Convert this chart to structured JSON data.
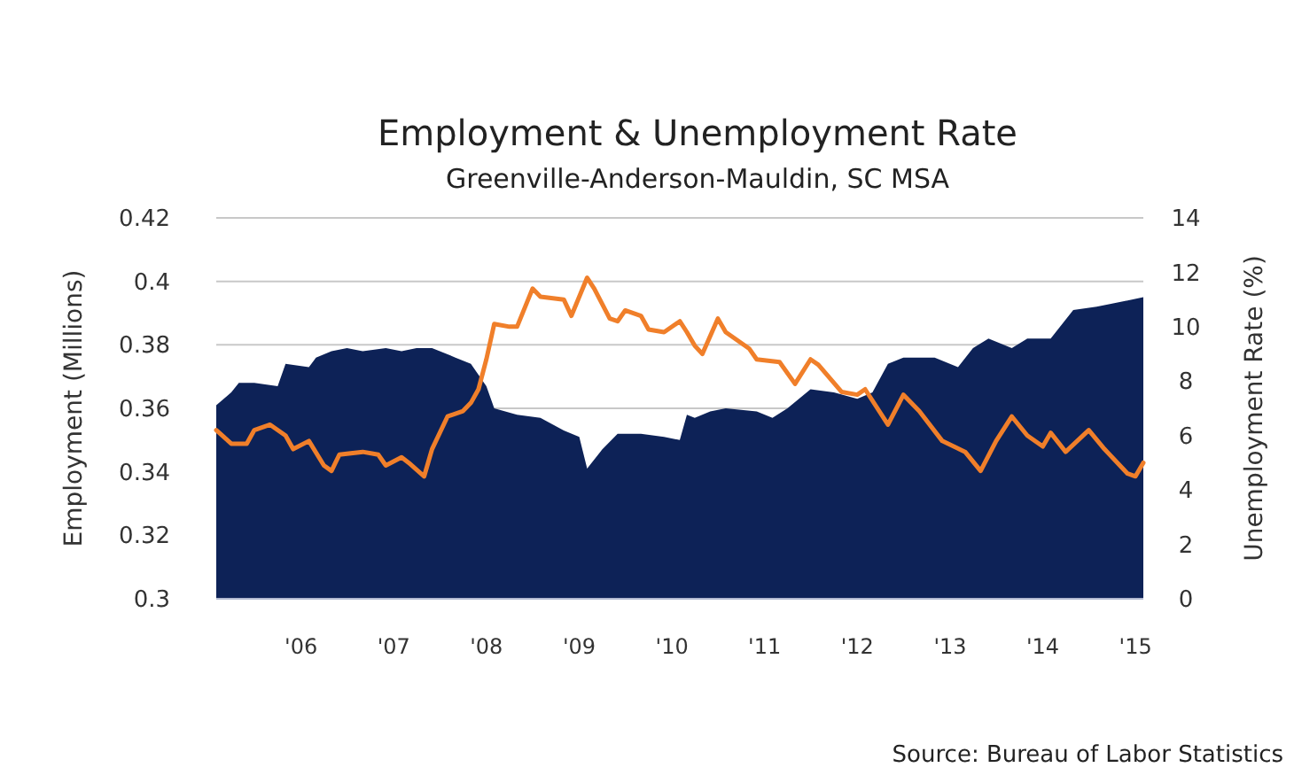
{
  "chart_data": {
    "type": "area",
    "title": "Employment & Unemployment Rate",
    "subtitle": "Greenville-Anderson-Mauldin, SC MSA",
    "ylabel": "Employment (Millions)",
    "y2label": "Unemployment Rate (%)",
    "xlim": [
      "2005-02",
      "2015-02"
    ],
    "xticks": [
      {
        "value": "2006-01",
        "label": "'06"
      },
      {
        "value": "2007-01",
        "label": "'07"
      },
      {
        "value": "2008-01",
        "label": "'08"
      },
      {
        "value": "2009-01",
        "label": "'09"
      },
      {
        "value": "2010-01",
        "label": "'10"
      },
      {
        "value": "2011-01",
        "label": "'11"
      },
      {
        "value": "2012-01",
        "label": "'12"
      },
      {
        "value": "2013-01",
        "label": "'13"
      },
      {
        "value": "2014-01",
        "label": "'14"
      },
      {
        "value": "2015-01",
        "label": "'15"
      }
    ],
    "ylim": [
      0.3,
      0.42
    ],
    "yticks": [
      0.3,
      0.32,
      0.34,
      0.36,
      0.38,
      0.4,
      0.42
    ],
    "y2lim": [
      0,
      14
    ],
    "y2ticks": [
      0,
      2,
      4,
      6,
      8,
      10,
      12,
      14
    ],
    "grid": "y",
    "annotations": [
      "Source: Bureau of Labor Statistics"
    ],
    "series": [
      {
        "color": "#0d2257",
        "x": [
          "2005-02",
          "2005-04",
          "2005-05",
          "2005-07",
          "2005-10",
          "2005-11",
          "2006-02",
          "2006-03",
          "2006-05",
          "2006-07",
          "2006-09",
          "2006-12",
          "2007-02",
          "2007-04",
          "2007-06",
          "2007-09",
          "2007-11",
          "2008-01",
          "2008-02",
          "2008-05",
          "2008-08",
          "2008-11",
          "2009-01",
          "2009-02",
          "2009-04",
          "2009-06",
          "2009-09",
          "2009-12",
          "2010-02",
          "2010-03",
          "2010-04",
          "2010-06",
          "2010-08",
          "2010-12",
          "2011-02",
          "2011-04",
          "2011-07",
          "2011-10",
          "2012-01",
          "2012-03",
          "2012-05",
          "2012-07",
          "2012-11",
          "2013-02",
          "2013-04",
          "2013-06",
          "2013-09",
          "2013-11",
          "2014-02",
          "2014-05",
          "2014-08",
          "2014-10",
          "2015-02"
        ],
        "values": [
          0.361,
          0.365,
          0.368,
          0.368,
          0.367,
          0.374,
          0.373,
          0.376,
          0.378,
          0.379,
          0.378,
          0.379,
          0.378,
          0.379,
          0.379,
          0.376,
          0.374,
          0.367,
          0.36,
          0.358,
          0.357,
          0.353,
          0.351,
          0.341,
          0.347,
          0.352,
          0.352,
          0.351,
          0.35,
          0.358,
          0.357,
          0.359,
          0.36,
          0.359,
          0.357,
          0.36,
          0.366,
          0.365,
          0.363,
          0.365,
          0.374,
          0.376,
          0.376,
          0.373,
          0.379,
          0.382,
          0.379,
          0.382,
          0.382,
          0.391,
          0.392,
          0.393,
          0.395
        ]
      },
      {
        "type": "line",
        "axis": "y2",
        "color": "#f07f2a",
        "x": [
          "2005-02",
          "2005-04",
          "2005-06",
          "2005-07",
          "2005-09",
          "2005-11",
          "2005-12",
          "2006-02",
          "2006-04",
          "2006-05",
          "2006-06",
          "2006-09",
          "2006-11",
          "2006-12",
          "2007-02",
          "2007-03",
          "2007-05",
          "2007-06",
          "2007-08",
          "2007-10",
          "2007-11",
          "2007-12",
          "2008-01",
          "2008-02",
          "2008-04",
          "2008-05",
          "2008-07",
          "2008-08",
          "2008-11",
          "2008-12",
          "2009-02",
          "2009-03",
          "2009-05",
          "2009-06",
          "2009-07",
          "2009-09",
          "2009-10",
          "2009-12",
          "2010-02",
          "2010-03",
          "2010-04",
          "2010-05",
          "2010-07",
          "2010-08",
          "2010-11",
          "2010-12",
          "2011-03",
          "2011-05",
          "2011-07",
          "2011-08",
          "2011-11",
          "2012-01",
          "2012-02",
          "2012-05",
          "2012-07",
          "2012-09",
          "2012-12",
          "2013-03",
          "2013-05",
          "2013-07",
          "2013-09",
          "2013-11",
          "2014-01",
          "2014-02",
          "2014-04",
          "2014-07",
          "2014-09",
          "2014-12",
          "2015-01",
          "2015-02"
        ],
        "values": [
          6.2,
          5.7,
          5.7,
          6.2,
          6.4,
          6.0,
          5.5,
          5.8,
          4.9,
          4.7,
          5.3,
          5.4,
          5.3,
          4.9,
          5.2,
          5.0,
          4.5,
          5.5,
          6.7,
          6.9,
          7.2,
          7.7,
          8.8,
          10.1,
          10.0,
          10.0,
          11.4,
          11.1,
          11.0,
          10.4,
          11.8,
          11.4,
          10.3,
          10.2,
          10.6,
          10.4,
          9.9,
          9.8,
          10.2,
          9.8,
          9.3,
          9.0,
          10.3,
          9.8,
          9.2,
          8.8,
          8.7,
          7.9,
          8.8,
          8.6,
          7.6,
          7.5,
          7.7,
          6.4,
          7.5,
          6.9,
          5.8,
          5.4,
          4.7,
          5.8,
          6.7,
          6.0,
          5.6,
          6.1,
          5.4,
          6.2,
          5.5,
          4.6,
          4.5,
          5.0
        ]
      }
    ]
  }
}
